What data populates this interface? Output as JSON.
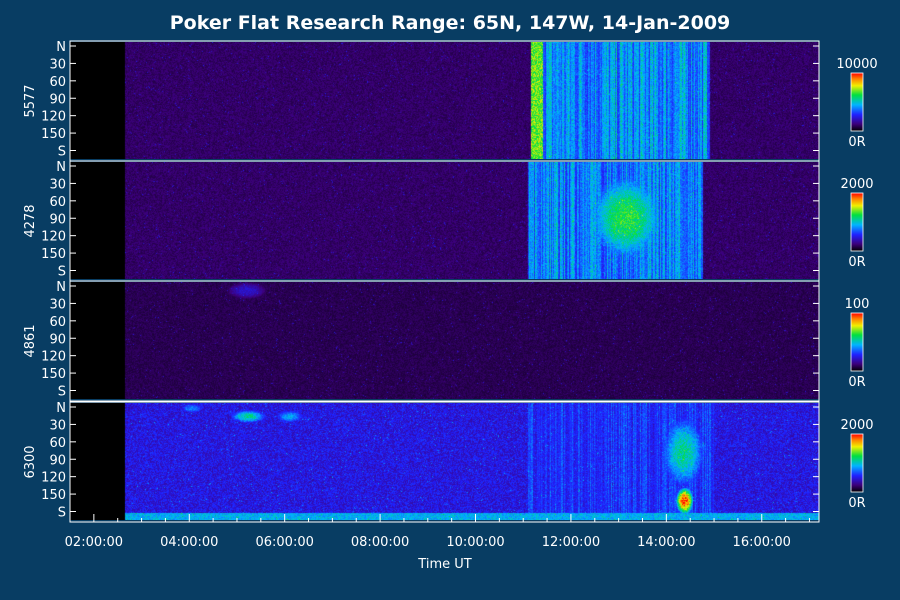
{
  "chart_data": {
    "type": "heatmap",
    "title": "Poker Flat Research Range: 65N, 147W, 14-Jan-2009",
    "xlabel": "Time UT",
    "x_tick_labels": [
      "02:00:00",
      "04:00:00",
      "06:00:00",
      "08:00:00",
      "10:00:00",
      "12:00:00",
      "14:00:00",
      "16:00:00"
    ],
    "x_range_hours": [
      1.5,
      17.2
    ],
    "y_tick_labels": [
      "N",
      "30",
      "60",
      "90",
      "120",
      "150",
      "S"
    ],
    "y_range_deg": [
      0,
      180
    ],
    "colors": {
      "background": "#083d63",
      "plot_background": "#000000",
      "text": "#ffffff"
    },
    "panels": [
      {
        "label": "5577",
        "colorbar": {
          "max_label": "10000",
          "min_label": "0R"
        },
        "observation_start_hour": 2.65,
        "baseline": 0.1,
        "features": [
          {
            "t0": 11.15,
            "t1": 14.9,
            "lat0": 0,
            "lat1": 180,
            "level": 0.52,
            "style": "rays"
          },
          {
            "t0": 11.15,
            "t1": 11.4,
            "lat0": 0,
            "lat1": 180,
            "level": 0.68,
            "style": "solid"
          }
        ]
      },
      {
        "label": "4278",
        "colorbar": {
          "max_label": "2000",
          "min_label": "0R"
        },
        "observation_start_hour": 2.65,
        "baseline": 0.1,
        "features": [
          {
            "t0": 11.1,
            "t1": 14.75,
            "lat0": 0,
            "lat1": 180,
            "level": 0.5,
            "style": "rays"
          },
          {
            "t0": 12.4,
            "t1": 13.9,
            "lat0": 20,
            "lat1": 150,
            "level": 0.64,
            "style": "blob"
          }
        ]
      },
      {
        "label": "4861",
        "colorbar": {
          "max_label": "100",
          "min_label": "0R"
        },
        "observation_start_hour": 2.65,
        "baseline": 0.08,
        "features": [
          {
            "t0": 4.8,
            "t1": 5.6,
            "lat0": 0,
            "lat1": 25,
            "level": 0.22,
            "style": "blob"
          }
        ]
      },
      {
        "label": "6300",
        "colorbar": {
          "max_label": "2000",
          "min_label": "0R"
        },
        "observation_start_hour": 2.65,
        "baseline": 0.24,
        "features": [
          {
            "t0": 4.85,
            "t1": 5.6,
            "lat0": 10,
            "lat1": 30,
            "level": 0.55,
            "style": "blob"
          },
          {
            "t0": 5.8,
            "t1": 6.4,
            "lat0": 10,
            "lat1": 30,
            "level": 0.45,
            "style": "blob"
          },
          {
            "t0": 3.8,
            "t1": 4.3,
            "lat0": 0,
            "lat1": 15,
            "level": 0.4,
            "style": "blob"
          },
          {
            "t0": 11.1,
            "t1": 15.0,
            "lat0": 0,
            "lat1": 180,
            "level": 0.36,
            "style": "rays"
          },
          {
            "t0": 13.9,
            "t1": 14.8,
            "lat0": 20,
            "lat1": 130,
            "level": 0.55,
            "style": "blob"
          },
          {
            "t0": 14.2,
            "t1": 14.55,
            "lat0": 130,
            "lat1": 170,
            "level": 0.95,
            "style": "blob"
          },
          {
            "t0": 2.65,
            "t1": 17.2,
            "lat0": 168,
            "lat1": 180,
            "level": 0.45,
            "style": "solid"
          }
        ]
      }
    ]
  }
}
